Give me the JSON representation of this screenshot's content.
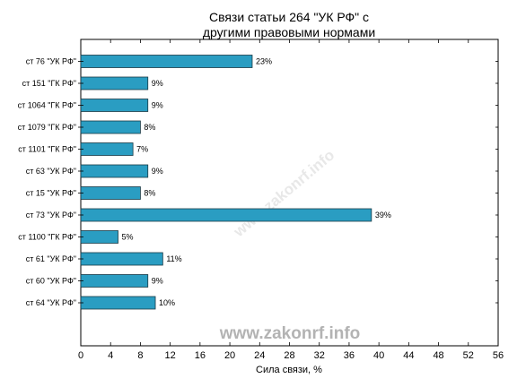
{
  "chart_data": {
    "type": "bar",
    "orientation": "horizontal",
    "title_lines": [
      "Связи статьи 264 \"УК РФ\" с",
      "другими правовыми нормами"
    ],
    "xlabel": "Сила связи, %",
    "ylabel": "",
    "xlim": [
      0,
      56
    ],
    "xticks": [
      0,
      4,
      8,
      12,
      16,
      20,
      24,
      28,
      32,
      36,
      40,
      44,
      48,
      52,
      56
    ],
    "grid": false,
    "legend": "none",
    "categories": [
      "ст 76 \"УК РФ\"",
      "ст 151 \"ГК РФ\"",
      "ст 1064 \"ГК РФ\"",
      "ст 1079 \"ГК РФ\"",
      "ст 1101 \"ГК РФ\"",
      "ст 63 \"УК РФ\"",
      "ст 15 \"УК РФ\"",
      "ст 73 \"УК РФ\"",
      "ст 1100 \"ГК РФ\"",
      "ст 61 \"УК РФ\"",
      "ст 60 \"УК РФ\"",
      "ст 64 \"УК РФ\""
    ],
    "values": [
      23,
      9,
      9,
      8,
      7,
      9,
      8,
      39,
      5,
      11,
      9,
      10
    ],
    "value_labels": [
      "23%",
      "9%",
      "9%",
      "8%",
      "7%",
      "9%",
      "8%",
      "39%",
      "5%",
      "11%",
      "9%",
      "10%"
    ],
    "bar_color": "#2a9dc2",
    "bar_edge_color": "#1a3a45"
  },
  "watermark": {
    "main": "www.zakonrf.info",
    "diagonal": "www.zakonrf.info"
  }
}
